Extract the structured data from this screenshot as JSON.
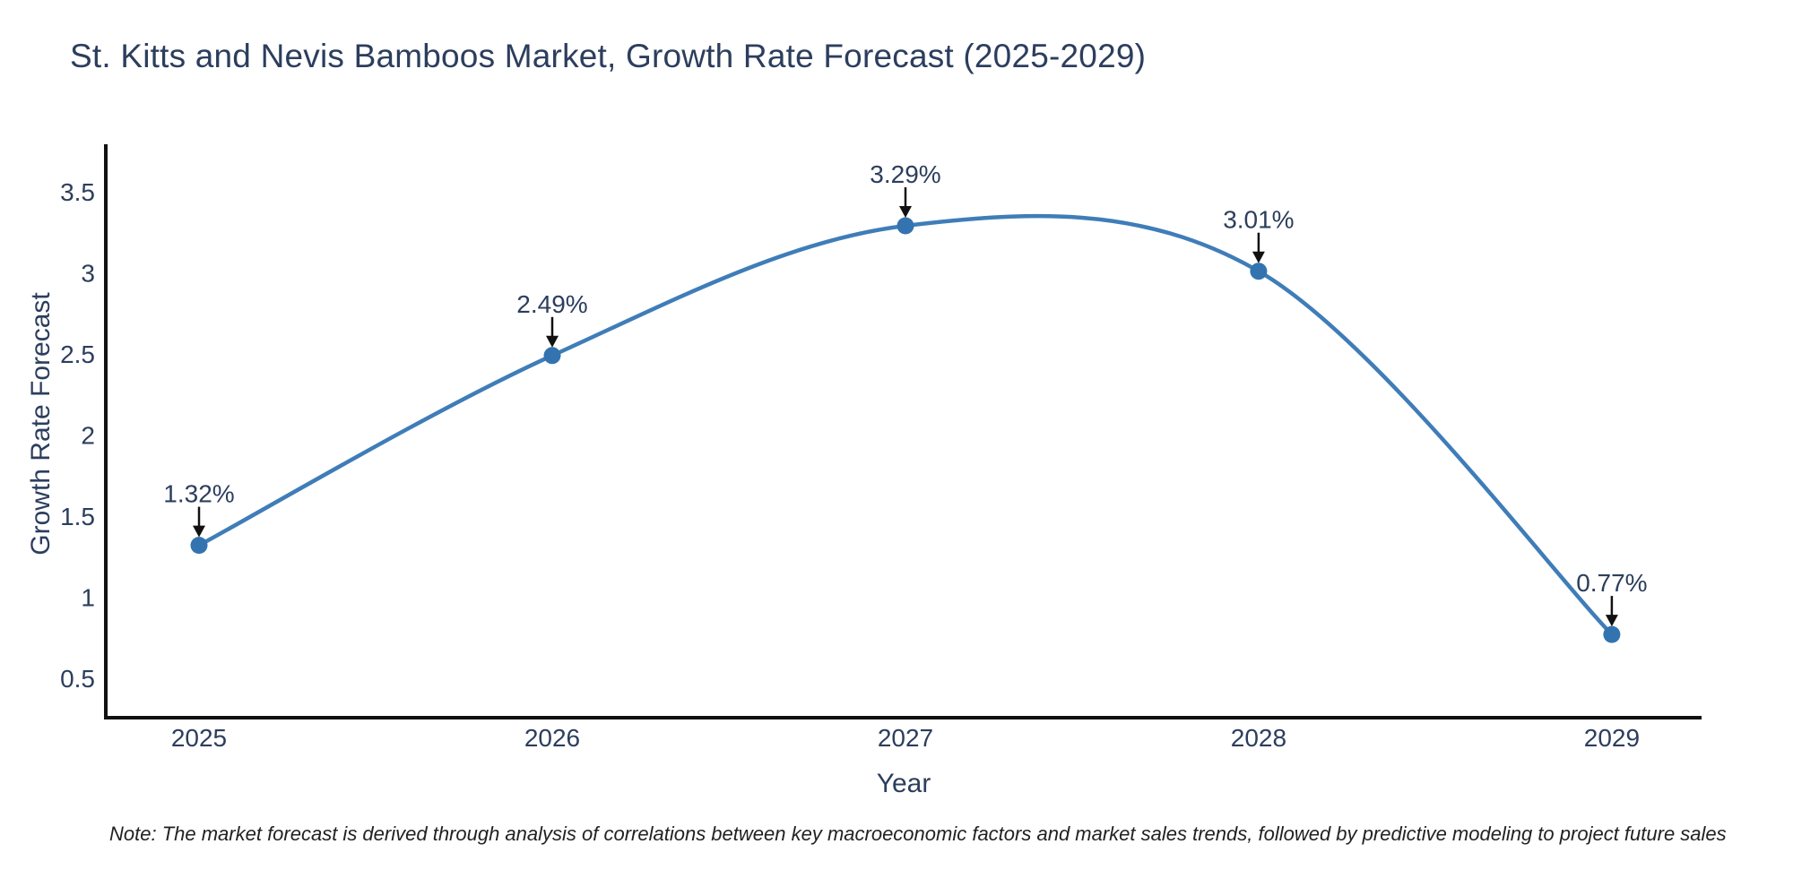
{
  "title": "St. Kitts and Nevis Bamboos Market, Growth Rate Forecast (2025-2029)",
  "note": "Note: The market forecast is derived through analysis of correlations between key macroeconomic factors and market sales trends, followed by predictive modeling to project future sales",
  "chart_data": {
    "type": "line",
    "title": "St. Kitts and Nevis Bamboos Market, Growth Rate Forecast (2025-2029)",
    "xlabel": "Year",
    "ylabel": "Growth Rate Forecast",
    "x": [
      2025,
      2026,
      2027,
      2028,
      2029
    ],
    "y": [
      1.32,
      2.49,
      3.29,
      3.01,
      0.77
    ],
    "point_labels": [
      "1.32%",
      "2.49%",
      "3.29%",
      "3.01%",
      "0.77%"
    ],
    "x_tick_labels": [
      "2025",
      "2026",
      "2027",
      "2028",
      "2029"
    ],
    "y_ticks": [
      0.5,
      1,
      1.5,
      2,
      2.5,
      3,
      3.5
    ],
    "y_tick_labels": [
      "0.5",
      "1",
      "1.5",
      "2",
      "2.5",
      "3",
      "3.5"
    ],
    "xlim": [
      2024.736,
      2029.254
    ],
    "ylim": [
      0.257,
      3.793
    ],
    "line_shape": "spline",
    "markers": true,
    "grid": false,
    "legend": null,
    "colors": {
      "line": "#3f7db8",
      "marker": "#3374b0",
      "text": "#2c3e5d",
      "axis": "#111111",
      "arrow": "#111111"
    }
  }
}
